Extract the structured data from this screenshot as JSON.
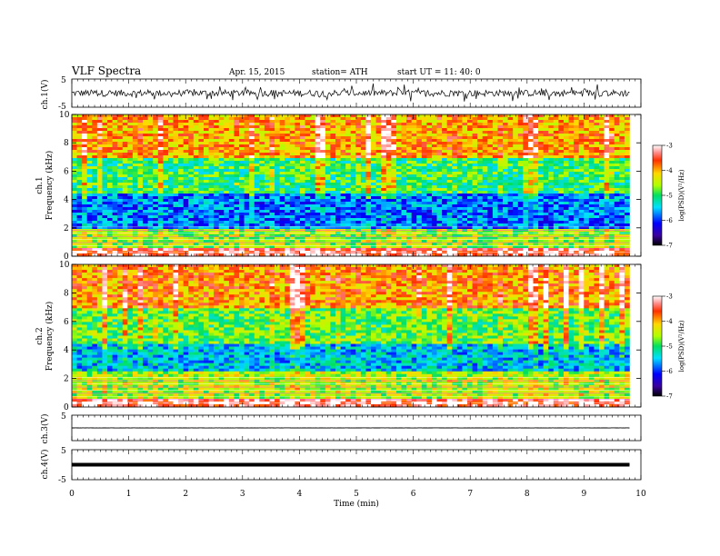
{
  "header": {
    "title": "VLF  Spectra",
    "date": "Apr. 15, 2015",
    "station": "station= ATH",
    "start": "start  UT =   11: 40: 0"
  },
  "colors": {
    "axes": "#000000",
    "trace": "#000000",
    "background": "#ffffff"
  },
  "chart_data": [
    {
      "type": "line",
      "panel": "ch1-waveform",
      "xlabel": "",
      "ylabel": "ch.1(V)",
      "ylim": [
        -5,
        5
      ],
      "yticks": [
        -5,
        5
      ],
      "xlim": [
        0,
        10
      ],
      "description_of_signal": "",
      "series": [
        {
          "x_range": [
            0,
            9.8
          ],
          "mean": 0,
          "noise_amplitude": 1.2,
          "spike_amplitude": 2.6
        }
      ]
    },
    {
      "type": "heatmap",
      "panel": "ch1-spectrogram",
      "ylabel": "ch.1\nFrequency  (kHz)",
      "ylim": [
        0,
        10
      ],
      "yticks": [
        0,
        2,
        4,
        6,
        8,
        10
      ],
      "xlim": [
        0,
        10
      ],
      "x_data_range": [
        0,
        9.8
      ],
      "colorbar": {
        "label": "log(PSD)(V²/Hz)",
        "range": [
          -7,
          -3
        ],
        "ticks": [
          -7,
          -6,
          -5,
          -4,
          -3
        ]
      },
      "band_levels": [
        {
          "f_range": [
            0,
            0.6
          ],
          "log_psd": -3.3
        },
        {
          "f_range": [
            0.6,
            2.0
          ],
          "log_psd": -4.6
        },
        {
          "f_range": [
            2.0,
            4.5
          ],
          "log_psd": -5.8
        },
        {
          "f_range": [
            4.5,
            7.0
          ],
          "log_psd": -5.0
        },
        {
          "f_range": [
            7.0,
            10.0
          ],
          "log_psd": -4.0
        }
      ]
    },
    {
      "type": "heatmap",
      "panel": "ch2-spectrogram",
      "ylabel": "ch.2\nFrequency  (kHz)",
      "ylim": [
        0,
        10
      ],
      "yticks": [
        0,
        2,
        4,
        6,
        8,
        10
      ],
      "xlim": [
        0,
        10
      ],
      "x_data_range": [
        0,
        9.8
      ],
      "colorbar": {
        "label": "log(PSD)(V²/Hz)",
        "range": [
          -7,
          -3
        ],
        "ticks": [
          -7,
          -6,
          -5,
          -4,
          -3
        ]
      },
      "band_levels": [
        {
          "f_range": [
            0,
            0.6
          ],
          "log_psd": -3.3
        },
        {
          "f_range": [
            0.6,
            2.5
          ],
          "log_psd": -4.5
        },
        {
          "f_range": [
            2.5,
            4.5
          ],
          "log_psd": -5.5
        },
        {
          "f_range": [
            4.5,
            7.0
          ],
          "log_psd": -4.8
        },
        {
          "f_range": [
            7.0,
            10.0
          ],
          "log_psd": -3.9
        }
      ]
    },
    {
      "type": "line",
      "panel": "ch3-waveform",
      "ylabel": "ch.3(V)",
      "ylim": [
        -5,
        5
      ],
      "yticks": [
        5
      ],
      "xlim": [
        0,
        10
      ],
      "series": [
        {
          "x_range": [
            0,
            9.8
          ],
          "mean": 0,
          "noise_amplitude": 0.05
        }
      ]
    },
    {
      "type": "line",
      "panel": "ch4-waveform",
      "ylabel": "ch.4(V)",
      "ylim": [
        -5,
        5
      ],
      "yticks": [
        -5,
        5
      ],
      "xlim": [
        0,
        10
      ],
      "xlabel": "Time  (min)",
      "xticks": [
        0,
        1,
        2,
        3,
        4,
        5,
        6,
        7,
        8,
        9,
        10
      ],
      "series": [
        {
          "x_range": [
            0,
            9.8
          ],
          "mean": 0,
          "noise_amplitude": 0.35
        }
      ]
    }
  ]
}
